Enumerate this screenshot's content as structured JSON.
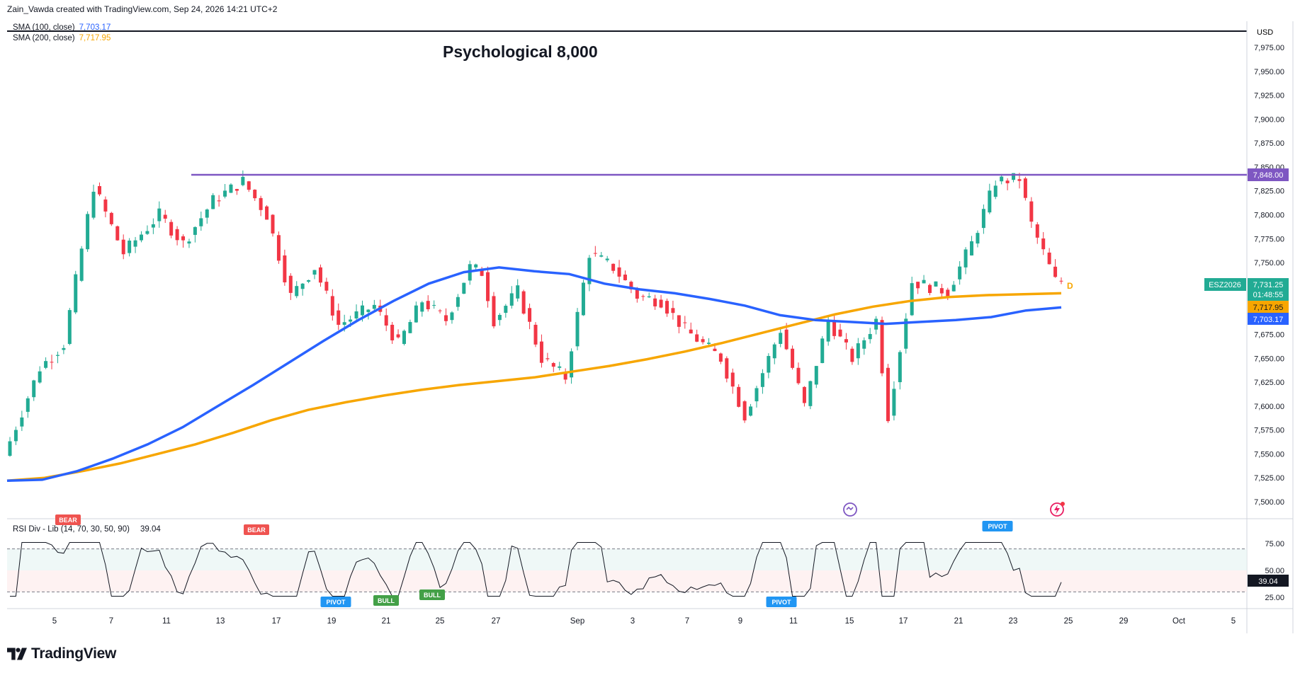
{
  "header": {
    "caption": "Zain_Vawda created with TradingView.com, Sep 24, 2026 14:21 UTC+2",
    "currency": "USD"
  },
  "legend": {
    "sma100_label": "SMA (100, close)",
    "sma100_value": "7,703.17",
    "sma200_label": "SMA (200, close)",
    "sma200_value": "7,717.95"
  },
  "annotation": "Psychological 8,000",
  "price_axis_ticks": [
    "7,975.00",
    "7,950.00",
    "7,925.00",
    "7,900.00",
    "7,875.00",
    "7,850.00",
    "7,825.00",
    "7,800.00",
    "7,775.00",
    "7,750.00",
    "7,725.00",
    "7,700.00",
    "7,675.00",
    "7,650.00",
    "7,625.00",
    "7,600.00",
    "7,575.00",
    "7,550.00",
    "7,525.00",
    "7,500.00"
  ],
  "price_labels": {
    "resistance": "7,848.00",
    "symbol": "ESZ2026",
    "last_price": "7,731.25",
    "countdown": "01:48:55",
    "sma200": "7,717.95",
    "sma100": "7,703.17",
    "d_marker": "D"
  },
  "rsi": {
    "label": "RSI Div - Lib (14, 70, 30, 50, 90)",
    "value": "39.04",
    "ticks": [
      "75.00",
      "50.00",
      "25.00"
    ],
    "signals": [
      "BEAR",
      "BEAR",
      "PIVOT",
      "BULL",
      "BULL",
      "PIVOT",
      "PIVOT"
    ]
  },
  "date_axis": [
    "5",
    "7",
    "11",
    "13",
    "17",
    "19",
    "21",
    "25",
    "27",
    "Sep",
    "3",
    "7",
    "9",
    "11",
    "15",
    "17",
    "21",
    "23",
    "25",
    "29",
    "Oct",
    "5"
  ],
  "brand": "TradingView",
  "colors": {
    "up": "#22ab94",
    "down": "#f23645",
    "sma100": "#2962ff",
    "sma200": "#f7a600",
    "resistance": "#7e57c2",
    "rsi_line": "#131722",
    "pivot": "#2196f3",
    "bull": "#43a047",
    "bear": "#ef5350"
  },
  "chart_data": {
    "type": "candlestick",
    "title": "",
    "series": [
      {
        "name": "SMA (100, close)",
        "values": [
          7522,
          7523,
          7532,
          7545,
          7560,
          7578,
          7600,
          7622,
          7645,
          7668,
          7690,
          7710,
          7728,
          7740,
          7745,
          7741,
          7738,
          7728,
          7722,
          7718,
          7712,
          7705,
          7695,
          7690,
          7688,
          7686,
          7688,
          7690,
          7693,
          7700,
          7703.17
        ]
      },
      {
        "name": "SMA (200, close)",
        "values": [
          7522,
          7525,
          7532,
          7540,
          7550,
          7560,
          7572,
          7585,
          7596,
          7604,
          7611,
          7617,
          7622,
          7626,
          7630,
          7636,
          7642,
          7649,
          7657,
          7666,
          7676,
          7686,
          7696,
          7704,
          7710,
          7714,
          7716,
          7717,
          7717.95
        ]
      }
    ],
    "resistance": 7848.0,
    "last_price": 7731.25,
    "ylim": [
      7490,
      7990
    ],
    "rsi": {
      "overbought": 70,
      "oversold": 30,
      "mid": 50,
      "last": 39.04
    }
  }
}
